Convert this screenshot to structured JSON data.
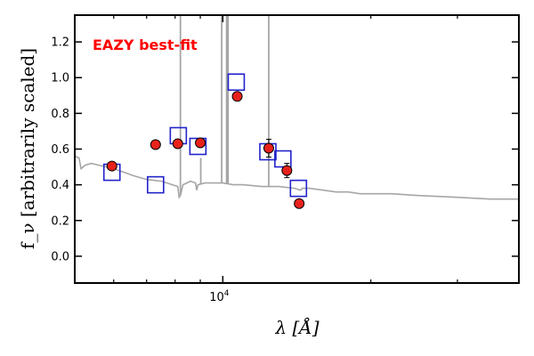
{
  "chart_data": {
    "type": "scatter",
    "annotation": "EAZY best-fit",
    "xlabel": "λ [Å]",
    "ylabel": "f_ν [arbitrarily scaled]",
    "xscale": "log",
    "xlim": [
      5000,
      40000
    ],
    "ylim": [
      -0.15,
      1.35
    ],
    "yticks": [
      0.0,
      0.2,
      0.4,
      0.6,
      0.8,
      1.0,
      1.2
    ],
    "ytick_labels": [
      "0.0",
      "0.2",
      "0.4",
      "0.6",
      "0.8",
      "1.0",
      "1.2"
    ],
    "xticks_major": [
      10000
    ],
    "xtick_major_labels": [
      "10^4"
    ],
    "xticks_minor": [
      6000,
      7000,
      8000,
      9000,
      20000,
      30000
    ],
    "grid": false,
    "colors": {
      "observed": "#e8221b",
      "model_photometry": "#2222cc",
      "sed": "#a6a6a6",
      "annotation": "#ff0000"
    },
    "series": [
      {
        "role": "observed",
        "marker": "circle",
        "x": [
          5950,
          7300,
          8100,
          9000,
          10700,
          12400,
          13500,
          14300
        ],
        "y": [
          0.505,
          0.625,
          0.63,
          0.635,
          0.895,
          0.605,
          0.48,
          0.295
        ],
        "yerr": [
          0.01,
          0.01,
          0.01,
          0.015,
          0.02,
          0.05,
          0.04,
          0.02
        ]
      },
      {
        "role": "model_photometry",
        "marker": "square",
        "x": [
          5950,
          7300,
          8120,
          8900,
          10650,
          12350,
          13250,
          14250
        ],
        "y": [
          0.47,
          0.4,
          0.675,
          0.615,
          0.975,
          0.585,
          0.545,
          0.38
        ]
      },
      {
        "role": "sed",
        "marker": "line",
        "x": [
          5000,
          5100,
          5150,
          5250,
          5400,
          5600,
          5800,
          6000,
          6300,
          6600,
          7000,
          7500,
          7900,
          8100,
          8150,
          8200,
          8300,
          8600,
          8800,
          8850,
          8900,
          9200,
          9600,
          10000,
          10500,
          11000,
          12000,
          13000,
          14000,
          14400,
          14500,
          15000,
          16000,
          17000,
          18000,
          19000,
          20000,
          22000,
          25000,
          30000,
          35000,
          40000
        ],
        "y": [
          0.56,
          0.55,
          0.49,
          0.51,
          0.52,
          0.51,
          0.5,
          0.49,
          0.47,
          0.45,
          0.43,
          0.42,
          0.4,
          0.39,
          0.33,
          0.34,
          0.4,
          0.42,
          0.41,
          0.37,
          0.4,
          0.41,
          0.41,
          0.41,
          0.4,
          0.4,
          0.39,
          0.39,
          0.38,
          0.37,
          0.38,
          0.38,
          0.37,
          0.36,
          0.36,
          0.35,
          0.35,
          0.35,
          0.34,
          0.33,
          0.32,
          0.32
        ]
      },
      {
        "role": "sed_emission_lines",
        "marker": "spike",
        "x": [
          8200,
          9020,
          9950,
          10180,
          10250,
          12400
        ],
        "y": [
          1.35,
          0.55,
          1.35,
          1.35,
          1.35,
          1.35
        ]
      }
    ]
  }
}
